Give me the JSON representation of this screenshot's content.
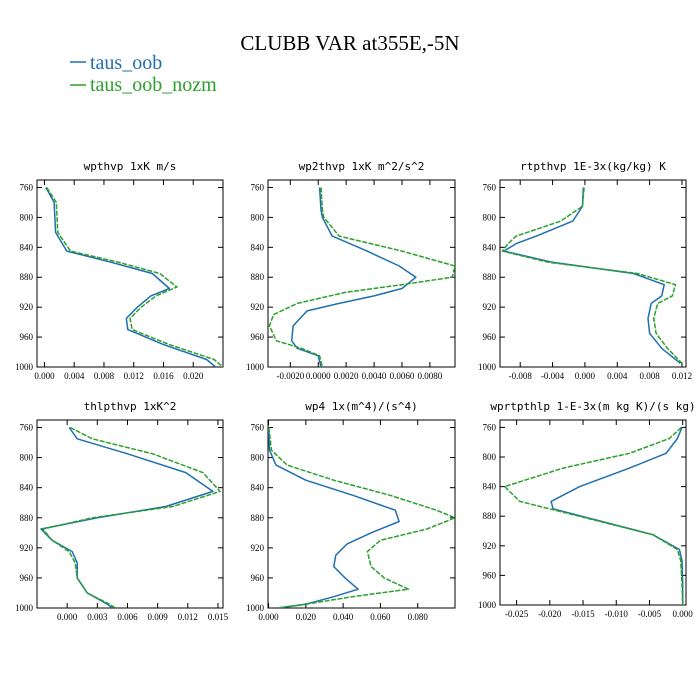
{
  "figure": {
    "title": "CLUBB VAR at355E,-5N",
    "legend": [
      {
        "name": "taus_oob",
        "color": "#1f6fb0"
      },
      {
        "name": "taus_oob_nozm",
        "color": "#2ca02c"
      }
    ]
  },
  "chart_data": [
    {
      "type": "line",
      "title": "wpthvp  1xK m/s",
      "xlim": [
        -0.001,
        0.024
      ],
      "ylim": [
        1000,
        750
      ],
      "xticks": [
        "0.000",
        "0.004",
        "0.008",
        "0.012",
        "0.016",
        "0.020"
      ],
      "xtick_values": [
        0.0,
        0.004,
        0.008,
        0.012,
        0.016,
        0.02
      ],
      "yticks": [
        760,
        800,
        840,
        880,
        920,
        960,
        1000
      ],
      "series": [
        {
          "name": "taus_oob",
          "x": [
            0.0002,
            0.0013,
            0.0015,
            0.003,
            0.009,
            0.0145,
            0.0168,
            0.0143,
            0.0125,
            0.011,
            0.0112,
            0.016,
            0.0218,
            0.023
          ],
          "y": [
            760,
            780,
            820,
            845,
            860,
            875,
            895,
            905,
            920,
            935,
            950,
            970,
            990,
            1000
          ]
        },
        {
          "name": "taus_oob_nozm",
          "x": [
            0.0003,
            0.0016,
            0.0018,
            0.0035,
            0.01,
            0.0155,
            0.0178,
            0.015,
            0.013,
            0.0115,
            0.0118,
            0.0168,
            0.0228,
            0.024
          ],
          "y": [
            760,
            780,
            820,
            845,
            860,
            875,
            893,
            905,
            920,
            935,
            950,
            970,
            990,
            1000
          ]
        }
      ]
    },
    {
      "type": "line",
      "title": "wp2thvp  1xK m^2/s^2",
      "xlim": [
        -0.0036,
        0.0098
      ],
      "ylim": [
        1000,
        750
      ],
      "xticks": [
        "-0.0020",
        "0.0000",
        "0.0020",
        "0.0040",
        "0.0060",
        "0.0080"
      ],
      "xtick_values": [
        -0.002,
        0.0,
        0.002,
        0.004,
        0.006,
        0.008
      ],
      "yticks": [
        760,
        800,
        840,
        880,
        920,
        960,
        1000
      ],
      "series": [
        {
          "name": "taus_oob",
          "x": [
            0.0001,
            0.0002,
            0.0003,
            0.001,
            0.0035,
            0.0058,
            0.007,
            0.006,
            0.004,
            0.0015,
            -0.0008,
            -0.0018,
            -0.0019,
            -0.0015,
            0.0,
            0.0002
          ],
          "y": [
            760,
            790,
            800,
            825,
            845,
            865,
            880,
            895,
            905,
            915,
            925,
            945,
            965,
            975,
            985,
            1000
          ]
        },
        {
          "name": "taus_oob_nozm",
          "x": [
            0.0002,
            0.0003,
            0.0004,
            0.0015,
            0.006,
            0.0098,
            0.0096,
            0.006,
            0.002,
            -0.0015,
            -0.0032,
            -0.0035,
            -0.003,
            -0.0012,
            0.0001,
            0.0003
          ],
          "y": [
            760,
            790,
            800,
            825,
            845,
            865,
            880,
            890,
            900,
            915,
            930,
            945,
            965,
            975,
            985,
            1000
          ]
        }
      ]
    },
    {
      "type": "line",
      "title": "rtpthvp  1E-3x(kg/kg) K",
      "xlim": [
        -0.0105,
        0.0125
      ],
      "ylim": [
        1000,
        750
      ],
      "xticks": [
        "-0.008",
        "-0.004",
        "0.000",
        "0.004",
        "0.008",
        "0.012"
      ],
      "xtick_values": [
        -0.008,
        -0.004,
        0.0,
        0.004,
        0.008,
        0.012
      ],
      "yticks": [
        760,
        800,
        840,
        880,
        920,
        960,
        1000
      ],
      "series": [
        {
          "name": "taus_oob",
          "x": [
            -0.0002,
            -0.0003,
            -0.0015,
            -0.006,
            -0.0085,
            -0.01,
            -0.004,
            0.006,
            0.0098,
            0.0095,
            0.0082,
            0.0078,
            0.008,
            0.0095,
            0.0118
          ],
          "y": [
            760,
            785,
            805,
            825,
            835,
            845,
            860,
            875,
            890,
            905,
            915,
            935,
            955,
            975,
            995
          ]
        },
        {
          "name": "taus_oob_nozm",
          "x": [
            -0.0001,
            -0.0003,
            -0.003,
            -0.0085,
            -0.0095,
            -0.0102,
            -0.0045,
            0.0065,
            0.0112,
            0.0108,
            0.009,
            0.0085,
            0.0088,
            0.0102,
            0.012
          ],
          "y": [
            760,
            785,
            805,
            825,
            835,
            845,
            860,
            875,
            890,
            905,
            915,
            935,
            955,
            975,
            995
          ]
        }
      ]
    },
    {
      "type": "line",
      "title": "thlpthvp  1xK^2",
      "xlim": [
        -0.003,
        0.0155
      ],
      "ylim": [
        1000,
        750
      ],
      "xticks": [
        "0.000",
        "0.003",
        "0.006",
        "0.009",
        "0.012",
        "0.015"
      ],
      "xtick_values": [
        0.0,
        0.003,
        0.006,
        0.009,
        0.012,
        0.015
      ],
      "yticks": [
        760,
        800,
        840,
        880,
        920,
        960,
        1000
      ],
      "series": [
        {
          "name": "taus_oob",
          "x": [
            0.0002,
            0.001,
            0.006,
            0.0118,
            0.0145,
            0.0098,
            0.003,
            -0.0026,
            -0.0015,
            0.0005,
            0.001,
            0.001,
            0.002,
            0.004,
            0.0045
          ],
          "y": [
            760,
            775,
            795,
            820,
            845,
            865,
            880,
            895,
            910,
            925,
            940,
            960,
            980,
            995,
            1000
          ]
        },
        {
          "name": "taus_oob_nozm",
          "x": [
            0.0003,
            0.0025,
            0.0085,
            0.0135,
            0.0152,
            0.0105,
            0.0025,
            -0.0024,
            -0.0015,
            0.0002,
            0.0008,
            0.001,
            0.002,
            0.0042,
            0.0048
          ],
          "y": [
            760,
            775,
            795,
            820,
            845,
            865,
            880,
            895,
            910,
            925,
            940,
            960,
            980,
            995,
            1000
          ]
        }
      ]
    },
    {
      "type": "line",
      "title": "wp4  1x(m^4)/(s^4)",
      "xlim": [
        -0.0003,
        0.1
      ],
      "ylim": [
        1000,
        750
      ],
      "xticks": [
        "0.000",
        "0.020",
        "0.040",
        "0.060",
        "0.080"
      ],
      "xtick_values": [
        0.0,
        0.02,
        0.04,
        0.06,
        0.08
      ],
      "yticks": [
        760,
        800,
        840,
        880,
        920,
        960,
        1000
      ],
      "series": [
        {
          "name": "taus_oob",
          "x": [
            0.0001,
            0.0005,
            0.004,
            0.02,
            0.045,
            0.068,
            0.07,
            0.055,
            0.042,
            0.036,
            0.035,
            0.041,
            0.048,
            0.035,
            0.02,
            0.005
          ],
          "y": [
            760,
            790,
            810,
            830,
            850,
            870,
            885,
            900,
            915,
            930,
            945,
            960,
            975,
            985,
            995,
            1000
          ]
        },
        {
          "name": "taus_oob_nozm",
          "x": [
            0.0002,
            0.0015,
            0.01,
            0.035,
            0.065,
            0.09,
            0.1,
            0.085,
            0.06,
            0.053,
            0.055,
            0.062,
            0.075,
            0.045,
            0.02,
            0.005
          ],
          "y": [
            760,
            790,
            810,
            830,
            850,
            870,
            880,
            895,
            910,
            925,
            945,
            960,
            975,
            985,
            995,
            1000
          ]
        }
      ]
    },
    {
      "type": "line",
      "title": "wprtpthlp  1-E-3x(m kg K)/(s kg)",
      "xlim": [
        -0.0275,
        0.0005
      ],
      "ylim": [
        1000,
        750
      ],
      "xticks": [
        "-0.025",
        "-0.020",
        "-0.015",
        "-0.010",
        "-0.005",
        "0.000"
      ],
      "xtick_values": [
        -0.025,
        -0.02,
        -0.015,
        -0.01,
        -0.005,
        0.0
      ],
      "yticks": [
        760,
        800,
        840,
        880,
        920,
        960,
        1000
      ],
      "series": [
        {
          "name": "taus_oob",
          "x": [
            -0.0001,
            -0.0008,
            -0.0025,
            -0.008,
            -0.0155,
            -0.0198,
            -0.0195,
            -0.0045,
            -0.0005,
            -0.0001,
            0.0,
            0.0
          ],
          "y": [
            760,
            775,
            795,
            815,
            840,
            860,
            870,
            905,
            925,
            940,
            970,
            1000
          ]
        },
        {
          "name": "taus_oob_nozm",
          "x": [
            -0.0002,
            -0.002,
            -0.008,
            -0.018,
            -0.0268,
            -0.0245,
            -0.0045,
            -0.0008,
            -0.0003,
            -0.0001,
            0.0
          ],
          "y": [
            760,
            775,
            795,
            815,
            840,
            860,
            905,
            925,
            940,
            970,
            1000
          ]
        }
      ]
    }
  ]
}
